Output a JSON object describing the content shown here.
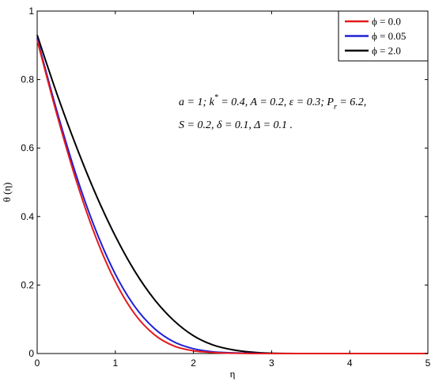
{
  "chart_data": {
    "type": "line",
    "title": "",
    "xlabel": "η",
    "ylabel": "θ (η)",
    "xlim": [
      0,
      5
    ],
    "ylim": [
      0,
      1
    ],
    "xticks": [
      "0",
      "1",
      "2",
      "3",
      "4",
      "5"
    ],
    "yticks": [
      "0",
      "0.2",
      "0.4",
      "0.6",
      "0.8",
      "1"
    ],
    "grid": false,
    "legend_position": "top-right",
    "x": [
      0,
      0.25,
      0.5,
      0.75,
      1.0,
      1.25,
      1.5,
      1.75,
      2.0,
      2.25,
      2.5,
      2.75,
      3.0,
      3.5,
      4.0,
      4.5,
      5.0
    ],
    "series": [
      {
        "name": "ϕ = 0.0",
        "color": "#e41a1c",
        "values": [
          0.915,
          0.7,
          0.505,
          0.34,
          0.21,
          0.115,
          0.055,
          0.022,
          0.008,
          0.003,
          0.001,
          0.0,
          0.0,
          0.0,
          0.0,
          0.0,
          0.0
        ]
      },
      {
        "name": "ϕ = 0.05",
        "color": "#1f1fd8",
        "values": [
          0.92,
          0.71,
          0.52,
          0.36,
          0.232,
          0.137,
          0.073,
          0.034,
          0.014,
          0.005,
          0.002,
          0.001,
          0.0,
          0.0,
          0.0,
          0.0,
          0.0
        ]
      },
      {
        "name": "ϕ = 2.0",
        "color": "#000000",
        "values": [
          0.93,
          0.76,
          0.605,
          0.465,
          0.343,
          0.24,
          0.158,
          0.096,
          0.052,
          0.025,
          0.011,
          0.004,
          0.001,
          0.0,
          0.0,
          0.0,
          0.0
        ]
      }
    ],
    "annotation": {
      "line1": "a = 1; k* = 0.4, A = 0.2, ε = 0.3; Pr = 6.2,",
      "line2": "S = 0.2, δ = 0.1, Δ = 0.1 ."
    }
  }
}
